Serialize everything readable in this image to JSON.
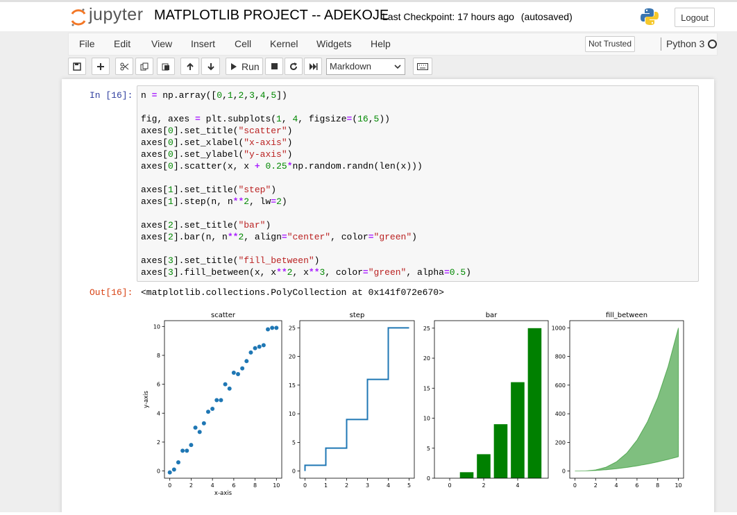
{
  "header": {
    "logo_text": "jupyter",
    "notebook_name": "MATPLOTLIB PROJECT -- ADEKOJE",
    "checkpoint": "Last Checkpoint: 17 hours ago",
    "autosave": "(autosaved)",
    "logout_label": "Logout"
  },
  "menu": {
    "items": [
      "File",
      "Edit",
      "View",
      "Insert",
      "Cell",
      "Kernel",
      "Widgets",
      "Help"
    ],
    "trust_label": "Not Trusted",
    "kernel_name": "Python 3"
  },
  "toolbar": {
    "run_label": "Run",
    "cell_type": "Markdown"
  },
  "cell": {
    "in_prompt": "In [16]:",
    "out_prompt": "Out[16]:",
    "output_text": "<matplotlib.collections.PolyCollection at 0x141f072e670>"
  },
  "chart_data": [
    {
      "type": "scatter",
      "title": "scatter",
      "xlabel": "x-axis",
      "ylabel": "y-axis",
      "xlim": [
        -0.5,
        10.5
      ],
      "ylim": [
        -0.5,
        10.4
      ],
      "xticks": [
        0,
        2,
        4,
        6,
        8,
        10
      ],
      "yticks": [
        0,
        2,
        4,
        6,
        8,
        10
      ],
      "x": [
        0,
        0.4,
        0.8,
        1.2,
        1.6,
        2.0,
        2.4,
        2.8,
        3.2,
        3.6,
        4.0,
        4.4,
        4.8,
        5.2,
        5.6,
        6.0,
        6.4,
        6.8,
        7.2,
        7.6,
        8.0,
        8.4,
        8.8,
        9.2,
        9.6,
        10.0
      ],
      "y": [
        -0.1,
        0.1,
        0.6,
        1.4,
        1.4,
        1.8,
        3.0,
        2.7,
        3.3,
        4.1,
        4.3,
        4.9,
        4.9,
        6.0,
        5.7,
        6.8,
        6.7,
        7.1,
        7.6,
        8.2,
        8.5,
        8.6,
        8.7,
        9.8,
        9.9,
        9.9
      ],
      "color": "#1f77b4"
    },
    {
      "type": "line",
      "title": "step",
      "xlim": [
        -0.25,
        5.25
      ],
      "ylim": [
        -1.25,
        26.25
      ],
      "xticks": [
        0,
        1,
        2,
        3,
        4,
        5
      ],
      "yticks": [
        0,
        5,
        10,
        15,
        20,
        25
      ],
      "x": [
        0,
        1,
        2,
        3,
        4,
        5
      ],
      "y": [
        0,
        1,
        4,
        9,
        16,
        25
      ],
      "color": "#1f77b4"
    },
    {
      "type": "bar",
      "title": "bar",
      "xlim": [
        -0.9,
        5.8
      ],
      "ylim": [
        0,
        26.25
      ],
      "xticks": [
        0,
        2,
        4
      ],
      "yticks": [
        0,
        5,
        10,
        15,
        20,
        25
      ],
      "categories": [
        0,
        1,
        2,
        3,
        4,
        5
      ],
      "values": [
        0,
        1,
        4,
        9,
        16,
        25
      ],
      "color": "#008000"
    },
    {
      "type": "area",
      "title": "fill_between",
      "xlim": [
        -0.5,
        10.5
      ],
      "ylim": [
        -50,
        1050
      ],
      "xticks": [
        0,
        2,
        4,
        6,
        8,
        10
      ],
      "yticks": [
        0,
        200,
        400,
        600,
        800,
        1000
      ],
      "x": [
        0,
        1,
        2,
        3,
        4,
        5,
        6,
        7,
        8,
        9,
        10
      ],
      "series": [
        {
          "values": [
            0,
            1,
            4,
            9,
            16,
            25,
            36,
            49,
            64,
            81,
            100
          ]
        },
        {
          "values": [
            0,
            1,
            8,
            27,
            64,
            125,
            216,
            343,
            512,
            729,
            1000
          ]
        }
      ],
      "color": "#008000"
    }
  ]
}
